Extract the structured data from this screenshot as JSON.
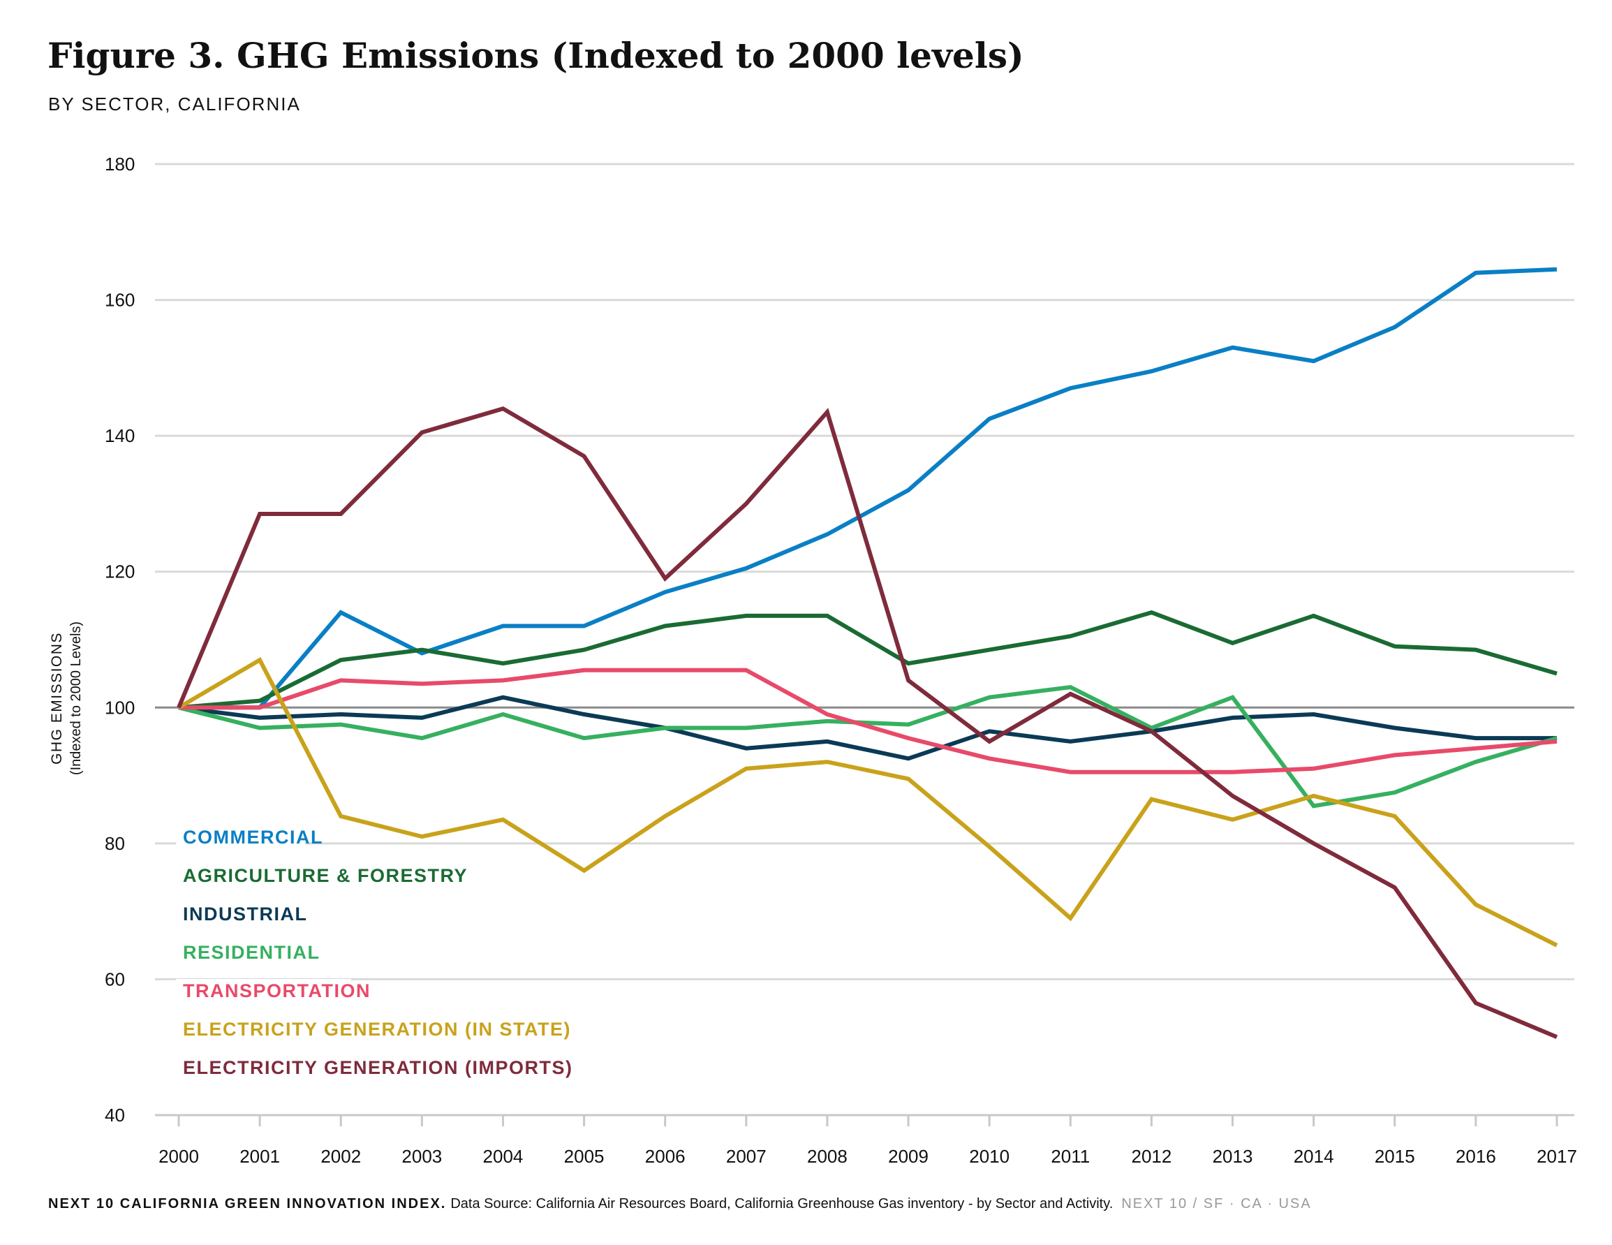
{
  "title": "Figure 3. GHG Emissions (Indexed to 2000 levels)",
  "subtitle": "BY SECTOR, CALIFORNIA",
  "footer": {
    "org": "NEXT 10 CALIFORNIA GREEN INNOVATION INDEX.",
    "source": "Data Source: California Air Resources Board, California Greenhouse Gas inventory - by Sector and Activity.",
    "brand": "NEXT 10  /  SF · CA · USA"
  },
  "chart_data": {
    "type": "line",
    "title": "Figure 3. GHG Emissions (Indexed to 2000 levels)",
    "subtitle": "BY SECTOR, CALIFORNIA",
    "ylabel": "GHG EMISSIONS",
    "ylabel_sub": "(Indexed to 2000 Levels)",
    "xlabel": "",
    "x": [
      "2000",
      "2001",
      "2002",
      "2003",
      "2004",
      "2005",
      "2006",
      "2007",
      "2008",
      "2009",
      "2010",
      "2011",
      "2012",
      "2013",
      "2014",
      "2015",
      "2016",
      "2017"
    ],
    "ylim": [
      40,
      180
    ],
    "yticks": [
      40,
      60,
      80,
      100,
      120,
      140,
      160,
      180
    ],
    "grid": true,
    "reference_line": 100,
    "legend_position": "bottom-left",
    "series": [
      {
        "name": "COMMERCIAL",
        "color": "#0a7fc5",
        "values": [
          100,
          100,
          114,
          108,
          112,
          112,
          117,
          120.5,
          125.5,
          132,
          142.5,
          147,
          149.5,
          153,
          151,
          156,
          164,
          164.5
        ]
      },
      {
        "name": "AGRICULTURE & FORESTRY",
        "color": "#1a6b33",
        "values": [
          100,
          101,
          107,
          108.5,
          106.5,
          108.5,
          112,
          113.5,
          113.5,
          106.5,
          108.5,
          110.5,
          114,
          109.5,
          113.5,
          109,
          108.5,
          105
        ]
      },
      {
        "name": "INDUSTRIAL",
        "color": "#0b3a55",
        "values": [
          100,
          98.5,
          99,
          98.5,
          101.5,
          99,
          97,
          94,
          95,
          92.5,
          96.5,
          95,
          96.5,
          98.5,
          99,
          97,
          95.5,
          95.5
        ]
      },
      {
        "name": "RESIDENTIAL",
        "color": "#36b060",
        "values": [
          100,
          97,
          97.5,
          95.5,
          99,
          95.5,
          97,
          97,
          98,
          97.5,
          101.5,
          103,
          97,
          101.5,
          85.5,
          87.5,
          92,
          95.5
        ]
      },
      {
        "name": "TRANSPORTATION",
        "color": "#e84a6a",
        "values": [
          100,
          100,
          104,
          103.5,
          104,
          105.5,
          105.5,
          105.5,
          99,
          95.5,
          92.5,
          90.5,
          90.5,
          90.5,
          91,
          93,
          94,
          95
        ]
      },
      {
        "name": "ELECTRICITY GENERATION (IN STATE)",
        "color": "#c9a21b",
        "values": [
          100,
          107,
          84,
          81,
          83.5,
          76,
          84,
          91,
          92,
          89.5,
          79.5,
          69,
          86.5,
          83.5,
          87,
          84,
          71,
          65
        ]
      },
      {
        "name": "ELECTRICITY GENERATION (IMPORTS)",
        "color": "#7f2b3c",
        "values": [
          100,
          128.5,
          128.5,
          140.5,
          144,
          137,
          119,
          130,
          143.5,
          104,
          95,
          102,
          96.5,
          87,
          80,
          73.5,
          56.5,
          51.5
        ]
      }
    ]
  }
}
